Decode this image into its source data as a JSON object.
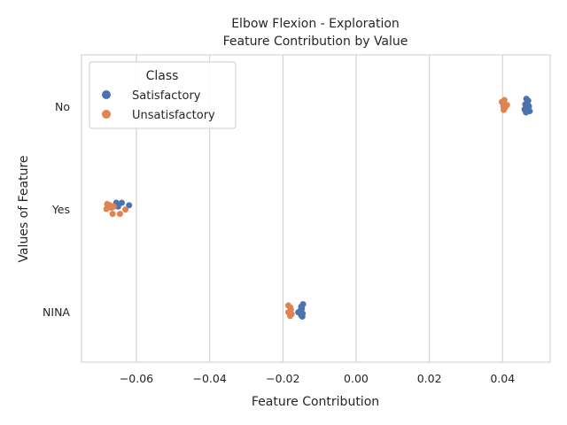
{
  "chart_data": {
    "type": "scatter",
    "title_line1": "Elbow Flexion - Exploration",
    "title_line2": "Feature Contribution by Value",
    "xlabel": "Feature Contribution",
    "ylabel": "Values of Feature",
    "xlim": [
      -0.075,
      0.053
    ],
    "x_ticks": [
      "−0.06",
      "−0.04",
      "−0.02",
      "0.00",
      "0.02",
      "0.04"
    ],
    "x_tick_values": [
      -0.06,
      -0.04,
      -0.02,
      0.0,
      0.02,
      0.04
    ],
    "categories": [
      "No",
      "Yes",
      "NINA"
    ],
    "grid": "vertical",
    "legend": {
      "title": "Class",
      "placement": "top-left",
      "entries": [
        "Satisfactory",
        "Unsatisfactory"
      ]
    },
    "colors": {
      "Satisfactory": "#4c72b0",
      "Unsatisfactory": "#dd8452"
    },
    "series": [
      {
        "name": "Satisfactory",
        "points": [
          {
            "category": "No",
            "x": 0.0465,
            "jitter": -0.12
          },
          {
            "category": "No",
            "x": 0.047,
            "jitter": -0.09
          },
          {
            "category": "No",
            "x": 0.0468,
            "jitter": -0.06
          },
          {
            "category": "No",
            "x": 0.0462,
            "jitter": -0.03
          },
          {
            "category": "No",
            "x": 0.0472,
            "jitter": 0.0
          },
          {
            "category": "No",
            "x": 0.0466,
            "jitter": 0.03
          },
          {
            "category": "No",
            "x": 0.046,
            "jitter": 0.05
          },
          {
            "category": "No",
            "x": 0.0474,
            "jitter": 0.08
          },
          {
            "category": "No",
            "x": 0.0464,
            "jitter": 0.1
          },
          {
            "category": "No",
            "x": 0.0469,
            "jitter": -0.01
          },
          {
            "category": "No",
            "x": 0.0463,
            "jitter": 0.07
          },
          {
            "category": "Yes",
            "x": -0.0655,
            "jitter": -0.1
          },
          {
            "category": "Yes",
            "x": -0.064,
            "jitter": -0.1
          },
          {
            "category": "Yes",
            "x": -0.062,
            "jitter": -0.06
          },
          {
            "category": "Yes",
            "x": -0.065,
            "jitter": -0.04
          },
          {
            "category": "NINA",
            "x": -0.0145,
            "jitter": -0.12
          },
          {
            "category": "NINA",
            "x": -0.015,
            "jitter": -0.08
          },
          {
            "category": "NINA",
            "x": -0.0148,
            "jitter": -0.05
          },
          {
            "category": "NINA",
            "x": -0.0152,
            "jitter": -0.02
          },
          {
            "category": "NINA",
            "x": -0.0158,
            "jitter": 0.01
          },
          {
            "category": "NINA",
            "x": -0.0146,
            "jitter": 0.03
          },
          {
            "category": "NINA",
            "x": -0.015,
            "jitter": 0.06
          },
          {
            "category": "NINA",
            "x": -0.0147,
            "jitter": 0.08
          }
        ]
      },
      {
        "name": "Unsatisfactory",
        "points": [
          {
            "category": "No",
            "x": 0.0405,
            "jitter": -0.1
          },
          {
            "category": "No",
            "x": 0.0398,
            "jitter": -0.07
          },
          {
            "category": "No",
            "x": 0.0412,
            "jitter": -0.02
          },
          {
            "category": "No",
            "x": 0.0402,
            "jitter": 0.0
          },
          {
            "category": "No",
            "x": 0.0406,
            "jitter": 0.03
          },
          {
            "category": "No",
            "x": 0.0403,
            "jitter": 0.06
          },
          {
            "category": "Yes",
            "x": -0.068,
            "jitter": -0.08
          },
          {
            "category": "Yes",
            "x": -0.0672,
            "jitter": -0.06
          },
          {
            "category": "Yes",
            "x": -0.0662,
            "jitter": -0.04
          },
          {
            "category": "Yes",
            "x": -0.0668,
            "jitter": -0.02
          },
          {
            "category": "Yes",
            "x": -0.0682,
            "jitter": 0.0
          },
          {
            "category": "Yes",
            "x": -0.063,
            "jitter": 0.01
          },
          {
            "category": "Yes",
            "x": -0.0665,
            "jitter": 0.08
          },
          {
            "category": "Yes",
            "x": -0.0645,
            "jitter": 0.08
          },
          {
            "category": "NINA",
            "x": -0.0185,
            "jitter": -0.1
          },
          {
            "category": "NINA",
            "x": -0.018,
            "jitter": -0.07
          },
          {
            "category": "NINA",
            "x": -0.0178,
            "jitter": -0.03
          },
          {
            "category": "NINA",
            "x": -0.0185,
            "jitter": 0.01
          },
          {
            "category": "NINA",
            "x": -0.0176,
            "jitter": 0.04
          },
          {
            "category": "NINA",
            "x": -0.018,
            "jitter": 0.07
          }
        ]
      }
    ]
  }
}
